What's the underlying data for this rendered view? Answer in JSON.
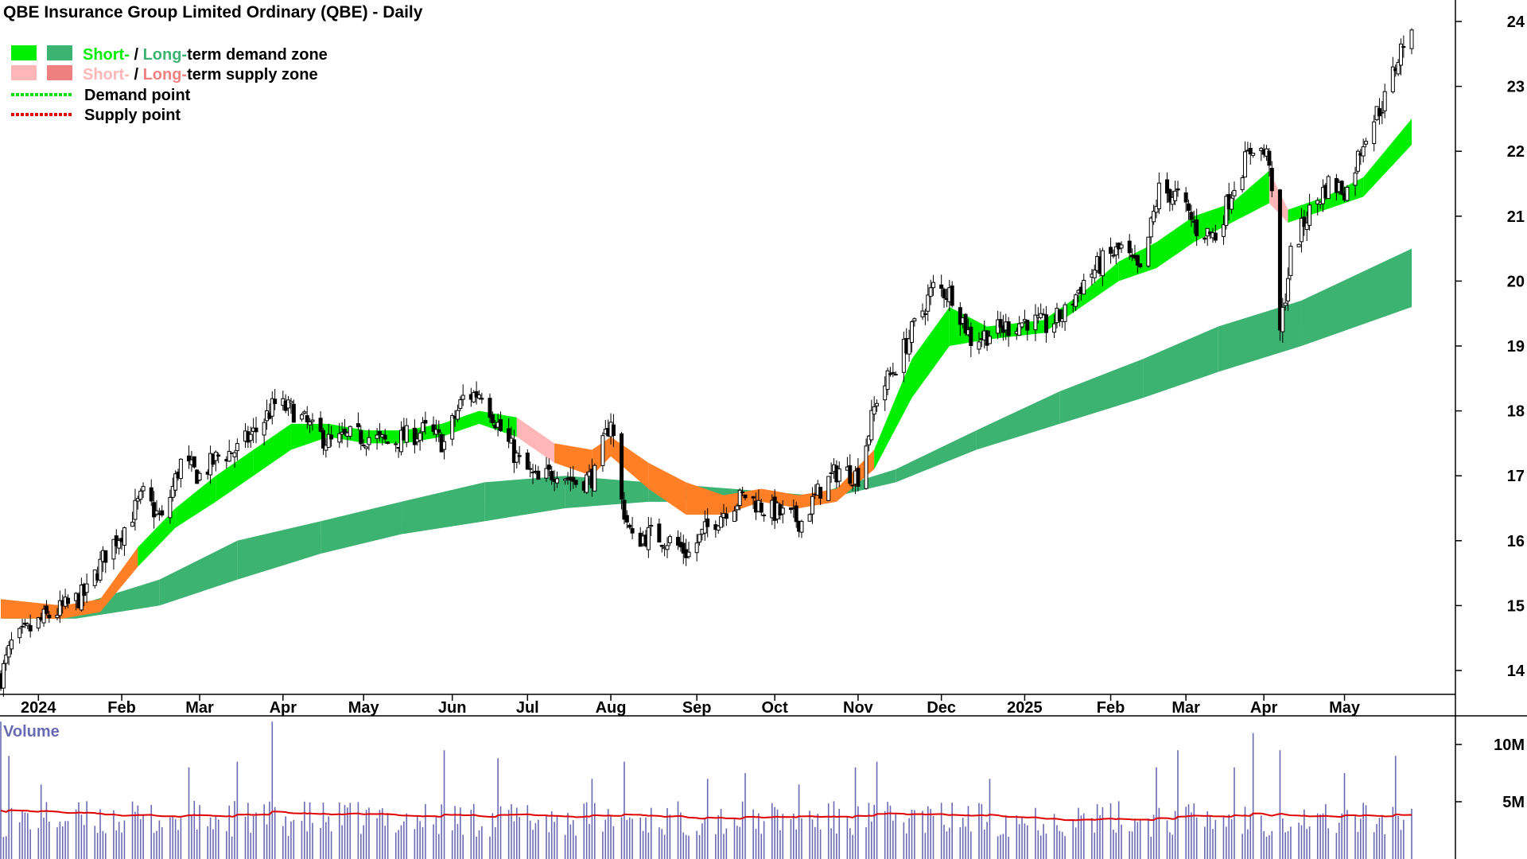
{
  "title": "QBE Insurance Group Limited Ordinary (QBE) - Daily",
  "legend": [
    {
      "kind": "demand-zone",
      "short_label": "Short-",
      "sep": " / ",
      "long_label": "Long-",
      "rest": "term demand zone",
      "short_color": "#00ee00",
      "long_color": "#3cb371"
    },
    {
      "kind": "supply-zone",
      "short_label": "Short-",
      "sep": " / ",
      "long_label": "Long-",
      "rest": "term supply zone",
      "short_color": "#ffb6b6",
      "long_color": "#f08080"
    },
    {
      "kind": "demand-point",
      "label": "Demand point",
      "color": "#00dd00"
    },
    {
      "kind": "supply-point",
      "label": "Supply point",
      "color": "#e00000"
    }
  ],
  "colors": {
    "short_demand": "#00ee00",
    "long_demand": "#3cb371",
    "short_supply": "#ffb6b6",
    "conflict_zone": "#ff7f27",
    "volume_bar": "#6a6ab4",
    "volume_ma": "#e00000",
    "axis": "#000000"
  },
  "volume_label": "Volume",
  "chart_data": {
    "type": "candlestick",
    "title": "QBE Insurance Group Limited Ordinary (QBE) - Daily",
    "y_ticks": [
      14,
      15,
      16,
      17,
      18,
      19,
      20,
      21,
      22,
      23,
      24
    ],
    "ylim": [
      13.6,
      24.3
    ],
    "x_range": [
      "2023-12-18",
      "2025-05-26"
    ],
    "months": [
      {
        "label": "2024",
        "date": "2024-01-01"
      },
      {
        "label": "Feb",
        "date": "2024-02-01"
      },
      {
        "label": "Mar",
        "date": "2024-03-01"
      },
      {
        "label": "Apr",
        "date": "2024-04-01"
      },
      {
        "label": "May",
        "date": "2024-05-01"
      },
      {
        "label": "Jun",
        "date": "2024-06-03"
      },
      {
        "label": "Jul",
        "date": "2024-07-01"
      },
      {
        "label": "Aug",
        "date": "2024-08-01"
      },
      {
        "label": "Sep",
        "date": "2024-09-02"
      },
      {
        "label": "Oct",
        "date": "2024-10-01"
      },
      {
        "label": "Nov",
        "date": "2024-11-01"
      },
      {
        "label": "Dec",
        "date": "2024-12-02"
      },
      {
        "label": "2025",
        "date": "2025-01-02"
      },
      {
        "label": "Feb",
        "date": "2025-02-03"
      },
      {
        "label": "Mar",
        "date": "2025-03-03"
      },
      {
        "label": "Apr",
        "date": "2025-04-01"
      },
      {
        "label": "May",
        "date": "2025-05-01"
      }
    ],
    "close_path": [
      [
        "2023-12-18",
        13.9
      ],
      [
        "2023-12-22",
        14.4
      ],
      [
        "2024-01-03",
        14.8
      ],
      [
        "2024-01-12",
        15.0
      ],
      [
        "2024-01-19",
        15.2
      ],
      [
        "2024-01-26",
        15.8
      ],
      [
        "2024-02-02",
        16.2
      ],
      [
        "2024-02-09",
        16.7
      ],
      [
        "2024-02-16",
        16.3
      ],
      [
        "2024-02-23",
        17.2
      ],
      [
        "2024-03-01",
        17.0
      ],
      [
        "2024-03-08",
        17.3
      ],
      [
        "2024-03-15",
        17.4
      ],
      [
        "2024-03-22",
        17.7
      ],
      [
        "2024-03-29",
        18.1
      ],
      [
        "2024-04-05",
        18.0
      ],
      [
        "2024-04-12",
        17.7
      ],
      [
        "2024-04-19",
        17.5
      ],
      [
        "2024-04-26",
        17.6
      ],
      [
        "2024-05-03",
        17.6
      ],
      [
        "2024-05-10",
        17.5
      ],
      [
        "2024-05-17",
        17.6
      ],
      [
        "2024-05-24",
        17.7
      ],
      [
        "2024-05-31",
        17.5
      ],
      [
        "2024-06-07",
        18.2
      ],
      [
        "2024-06-14",
        18.3
      ],
      [
        "2024-06-21",
        17.7
      ],
      [
        "2024-06-28",
        17.2
      ],
      [
        "2024-07-05",
        16.9
      ],
      [
        "2024-07-12",
        17.1
      ],
      [
        "2024-07-19",
        16.9
      ],
      [
        "2024-07-26",
        17.0
      ],
      [
        "2024-08-01",
        17.9
      ],
      [
        "2024-08-05",
        16.6
      ],
      [
        "2024-08-09",
        16.0
      ],
      [
        "2024-08-16",
        16.1
      ],
      [
        "2024-08-23",
        16.0
      ],
      [
        "2024-08-30",
        15.8
      ],
      [
        "2024-09-06",
        16.2
      ],
      [
        "2024-09-13",
        16.5
      ],
      [
        "2024-09-20",
        16.7
      ],
      [
        "2024-09-27",
        16.5
      ],
      [
        "2024-10-04",
        16.4
      ],
      [
        "2024-10-11",
        16.3
      ],
      [
        "2024-10-18",
        16.8
      ],
      [
        "2024-10-25",
        17.1
      ],
      [
        "2024-11-01",
        17.0
      ],
      [
        "2024-11-08",
        18.2
      ],
      [
        "2024-11-15",
        18.7
      ],
      [
        "2024-11-22",
        19.3
      ],
      [
        "2024-11-29",
        19.9
      ],
      [
        "2024-12-06",
        19.8
      ],
      [
        "2024-12-13",
        19.1
      ],
      [
        "2024-12-20",
        19.2
      ],
      [
        "2025-01-03",
        19.4
      ],
      [
        "2025-01-10",
        19.3
      ],
      [
        "2025-01-17",
        19.5
      ],
      [
        "2025-01-24",
        20.0
      ],
      [
        "2025-01-31",
        20.3
      ],
      [
        "2025-02-07",
        20.5
      ],
      [
        "2025-02-14",
        20.1
      ],
      [
        "2025-02-21",
        21.4
      ],
      [
        "2025-02-28",
        21.3
      ],
      [
        "2025-03-07",
        20.8
      ],
      [
        "2025-03-14",
        20.7
      ],
      [
        "2025-03-21",
        21.5
      ],
      [
        "2025-03-28",
        22.1
      ],
      [
        "2025-04-03",
        21.9
      ],
      [
        "2025-04-07",
        19.2
      ],
      [
        "2025-04-11",
        20.4
      ],
      [
        "2025-04-17",
        21.0
      ],
      [
        "2025-04-25",
        21.5
      ],
      [
        "2025-05-02",
        21.4
      ],
      [
        "2025-05-09",
        22.3
      ],
      [
        "2025-05-16",
        22.8
      ],
      [
        "2025-05-23",
        23.7
      ]
    ],
    "short_zone": [
      [
        "2023-12-18",
        14.8,
        15.1
      ],
      [
        "2024-01-10",
        14.8,
        15.0
      ],
      [
        "2024-01-24",
        14.9,
        15.1
      ],
      [
        "2024-02-07",
        15.6,
        15.9
      ],
      [
        "2024-02-21",
        16.2,
        16.5
      ],
      [
        "2024-03-07",
        16.6,
        17.0
      ],
      [
        "2024-03-21",
        17.0,
        17.4
      ],
      [
        "2024-04-04",
        17.4,
        17.8
      ],
      [
        "2024-04-18",
        17.6,
        17.8
      ],
      [
        "2024-05-02",
        17.5,
        17.7
      ],
      [
        "2024-05-16",
        17.5,
        17.7
      ],
      [
        "2024-05-30",
        17.6,
        17.8
      ],
      [
        "2024-06-13",
        17.8,
        18.0
      ],
      [
        "2024-06-27",
        17.6,
        17.9
      ],
      [
        "2024-07-11",
        17.2,
        17.5
      ],
      [
        "2024-07-25",
        17.0,
        17.4
      ],
      [
        "2024-08-01",
        17.3,
        17.6
      ],
      [
        "2024-08-15",
        16.8,
        17.2
      ],
      [
        "2024-08-29",
        16.4,
        16.9
      ],
      [
        "2024-09-12",
        16.4,
        16.7
      ],
      [
        "2024-09-26",
        16.6,
        16.8
      ],
      [
        "2024-10-10",
        16.5,
        16.7
      ],
      [
        "2024-10-24",
        16.6,
        16.8
      ],
      [
        "2024-11-07",
        17.1,
        17.4
      ],
      [
        "2024-11-21",
        18.2,
        18.8
      ],
      [
        "2024-12-05",
        19.0,
        19.6
      ],
      [
        "2024-12-19",
        19.1,
        19.3
      ],
      [
        "2025-01-09",
        19.2,
        19.4
      ],
      [
        "2025-01-23",
        19.6,
        19.8
      ],
      [
        "2025-02-06",
        20.0,
        20.3
      ],
      [
        "2025-02-20",
        20.2,
        20.6
      ],
      [
        "2025-03-06",
        20.6,
        21.0
      ],
      [
        "2025-03-20",
        20.9,
        21.2
      ],
      [
        "2025-04-03",
        21.2,
        21.7
      ],
      [
        "2025-04-10",
        20.9,
        21.1
      ],
      [
        "2025-04-24",
        21.1,
        21.3
      ],
      [
        "2025-05-08",
        21.3,
        21.6
      ],
      [
        "2025-05-26",
        22.1,
        22.5
      ]
    ],
    "long_zone": [
      [
        "2023-12-18",
        14.8,
        15.0
      ],
      [
        "2024-01-15",
        14.8,
        15.0
      ],
      [
        "2024-02-15",
        15.0,
        15.4
      ],
      [
        "2024-03-15",
        15.4,
        16.0
      ],
      [
        "2024-04-15",
        15.8,
        16.3
      ],
      [
        "2024-05-15",
        16.1,
        16.6
      ],
      [
        "2024-06-15",
        16.3,
        16.9
      ],
      [
        "2024-07-15",
        16.5,
        17.0
      ],
      [
        "2024-08-15",
        16.6,
        16.9
      ],
      [
        "2024-09-15",
        16.6,
        16.8
      ],
      [
        "2024-10-15",
        16.6,
        16.7
      ],
      [
        "2024-11-15",
        16.9,
        17.1
      ],
      [
        "2024-12-15",
        17.4,
        17.7
      ],
      [
        "2025-01-15",
        17.8,
        18.3
      ],
      [
        "2025-02-15",
        18.2,
        18.8
      ],
      [
        "2025-03-15",
        18.6,
        19.3
      ],
      [
        "2025-04-15",
        19.0,
        19.7
      ],
      [
        "2025-05-26",
        19.6,
        20.5
      ]
    ],
    "volume": {
      "ylim": [
        0,
        12.5
      ],
      "y_ticks": [
        {
          "value": 5,
          "label": "5M"
        },
        {
          "value": 10,
          "label": "10M"
        }
      ],
      "typical": 3.5,
      "moving_average": 4.0,
      "spikes": [
        [
          "2023-12-18",
          12.0
        ],
        [
          "2023-12-21",
          9.0
        ],
        [
          "2024-01-02",
          6.5
        ],
        [
          "2024-02-26",
          8.0
        ],
        [
          "2024-03-15",
          8.5
        ],
        [
          "2024-03-28",
          12.0
        ],
        [
          "2024-05-31",
          9.5
        ],
        [
          "2024-06-20",
          8.8
        ],
        [
          "2024-07-25",
          7.0
        ],
        [
          "2024-08-06",
          8.5
        ],
        [
          "2024-09-06",
          7.0
        ],
        [
          "2024-09-20",
          7.5
        ],
        [
          "2024-10-10",
          6.5
        ],
        [
          "2024-10-31",
          8.0
        ],
        [
          "2024-11-08",
          8.5
        ],
        [
          "2024-12-20",
          7.0
        ],
        [
          "2025-02-20",
          8.0
        ],
        [
          "2025-02-28",
          9.5
        ],
        [
          "2025-03-21",
          8.0
        ],
        [
          "2025-03-28",
          11.0
        ],
        [
          "2025-04-07",
          9.5
        ],
        [
          "2025-05-01",
          7.5
        ],
        [
          "2025-05-20",
          9.0
        ]
      ]
    }
  }
}
